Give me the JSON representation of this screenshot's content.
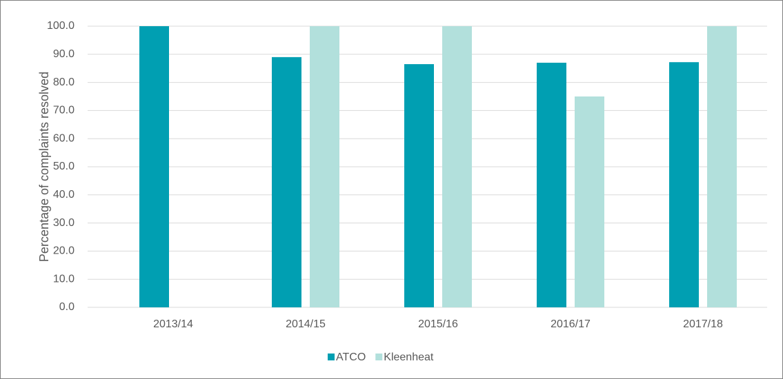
{
  "chart_data": {
    "type": "bar",
    "ylabel": "Percentage of complaints resolved",
    "categories": [
      "2013/14",
      "2014/15",
      "2015/16",
      "2016/17",
      "2017/18"
    ],
    "series": [
      {
        "name": "ATCO",
        "color": "#009fb2",
        "values": [
          100,
          89,
          86.5,
          87,
          87.2
        ]
      },
      {
        "name": "Kleenheat",
        "color": "#b2e0dc",
        "values": [
          null,
          100,
          100,
          75,
          100
        ]
      }
    ],
    "ylim": [
      0,
      100
    ],
    "yticks": [
      {
        "value": 0,
        "label": "0.0"
      },
      {
        "value": 10,
        "label": "10.0"
      },
      {
        "value": 20,
        "label": "20.0"
      },
      {
        "value": 30,
        "label": "30.0"
      },
      {
        "value": 40,
        "label": "40.0"
      },
      {
        "value": 50,
        "label": "50.0"
      },
      {
        "value": 60,
        "label": "60.0"
      },
      {
        "value": 70,
        "label": "70.0"
      },
      {
        "value": 80,
        "label": "80.0"
      },
      {
        "value": 90,
        "label": "90.0"
      },
      {
        "value": 100,
        "label": "100.0"
      }
    ],
    "grid": true,
    "legend": "bottom"
  }
}
